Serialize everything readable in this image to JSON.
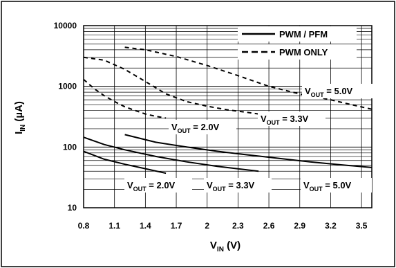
{
  "chart_data": {
    "type": "line",
    "x_scale": "linear",
    "y_scale": "log",
    "xlim": [
      0.8,
      3.6
    ],
    "ylim": [
      10,
      10000
    ],
    "xticks": [
      0.8,
      1.1,
      1.4,
      1.7,
      2,
      2.3,
      2.6,
      2.9,
      3.2,
      3.5
    ],
    "xtick_labels": [
      "0.8",
      "1.1",
      "1.4",
      "1.7",
      "2",
      "2.3",
      "2.6",
      "2.9",
      "3.2",
      "3.5"
    ],
    "yticks": [
      10,
      100,
      1000,
      10000
    ],
    "ytick_labels": [
      "10",
      "100",
      "1000",
      "10000"
    ],
    "grid": true,
    "xlabel": {
      "main": "V",
      "sub": "IN",
      "unit": " (V)"
    },
    "ylabel": {
      "main": "I",
      "sub": "IN",
      "unit": " (µA)"
    },
    "legend": {
      "placement": "top-right",
      "entries": [
        {
          "label": "PWM / PFM",
          "style": "solid"
        },
        {
          "label": "PWM ONLY",
          "style": "dashed"
        }
      ]
    },
    "series": [
      {
        "mode": "PWM ONLY",
        "vout": "2.0V",
        "style": "dashed",
        "x": [
          0.8,
          0.9,
          1.0,
          1.1,
          1.2,
          1.3,
          1.4,
          1.5,
          1.6
        ],
        "y": [
          1300,
          920,
          700,
          560,
          460,
          400,
          350,
          320,
          300
        ]
      },
      {
        "mode": "PWM ONLY",
        "vout": "3.3V",
        "style": "dashed",
        "x": [
          0.8,
          1.0,
          1.2,
          1.4,
          1.6,
          1.8,
          2.0,
          2.2,
          2.4,
          2.5
        ],
        "y": [
          3000,
          2700,
          1900,
          1200,
          750,
          560,
          470,
          410,
          370,
          350
        ]
      },
      {
        "mode": "PWM ONLY",
        "vout": "5.0V",
        "style": "dashed",
        "x": [
          1.2,
          1.4,
          1.7,
          2.0,
          2.3,
          2.6,
          2.9,
          3.2,
          3.4,
          3.6
        ],
        "y": [
          4400,
          4000,
          3100,
          2200,
          1500,
          1000,
          750,
          600,
          500,
          420
        ]
      },
      {
        "mode": "PWM / PFM",
        "vout": "2.0V",
        "style": "solid",
        "x": [
          0.8,
          1.0,
          1.2,
          1.4,
          1.6
        ],
        "y": [
          85,
          63,
          52,
          44,
          37
        ]
      },
      {
        "mode": "PWM / PFM",
        "vout": "3.3V",
        "style": "solid",
        "x": [
          0.8,
          1.0,
          1.2,
          1.5,
          1.8,
          2.1,
          2.5
        ],
        "y": [
          145,
          110,
          90,
          70,
          57,
          48,
          40
        ]
      },
      {
        "mode": "PWM / PFM",
        "vout": "5.0V",
        "style": "solid",
        "x": [
          1.2,
          1.5,
          1.8,
          2.1,
          2.4,
          2.7,
          3.0,
          3.3,
          3.6
        ],
        "y": [
          160,
          120,
          100,
          85,
          74,
          65,
          57,
          51,
          46
        ]
      }
    ],
    "annotations": [
      {
        "main": "V",
        "sub": "OUT",
        "value": " = 5.0V",
        "group": "PWM ONLY"
      },
      {
        "main": "V",
        "sub": "OUT",
        "value": " = 2.0V",
        "group": "PWM ONLY"
      },
      {
        "main": "V",
        "sub": "OUT",
        "value": " = 3.3V",
        "group": "PWM ONLY"
      },
      {
        "main": "V",
        "sub": "OUT",
        "value": " = 2.0V",
        "group": "PWM / PFM"
      },
      {
        "main": "V",
        "sub": "OUT",
        "value": " = 3.3V",
        "group": "PWM / PFM"
      },
      {
        "main": "V",
        "sub": "OUT",
        "value": " = 5.0V",
        "group": "PWM / PFM"
      }
    ]
  }
}
